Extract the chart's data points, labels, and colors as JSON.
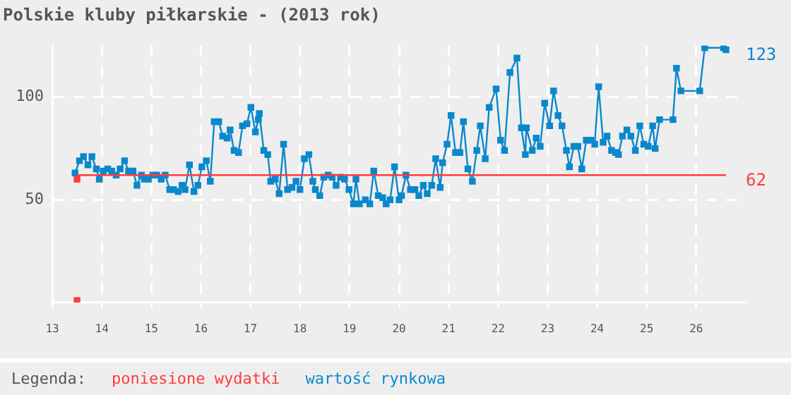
{
  "chart_data": {
    "type": "line",
    "title": "Polskie kluby piłkarskie - (2013 rok)",
    "legend_title": "Legenda:",
    "legend": "bottom",
    "grid": true,
    "marker": "square",
    "xlim": [
      13,
      27
    ],
    "xticks": [
      13,
      14,
      15,
      16,
      17,
      18,
      19,
      20,
      21,
      22,
      23,
      24,
      25,
      26
    ],
    "ylim": [
      0,
      125
    ],
    "yticks": [
      50,
      100
    ],
    "series": [
      {
        "name": "poniesione wydatki",
        "type": "scatter",
        "color": "#ff3b3b",
        "x": [
          13.5,
          13.5
        ],
        "values": [
          60,
          1
        ]
      },
      {
        "type": "line",
        "color": "#ff3b3b",
        "marker": "none",
        "x": [
          13.5,
          26.6
        ],
        "values": [
          62,
          62
        ]
      },
      {
        "name": "wartość rynkowa",
        "color": "#0a88cc",
        "x": [
          13.46,
          13.55,
          13.63,
          13.72,
          13.8,
          13.89,
          13.95,
          14.03,
          14.12,
          14.2,
          14.29,
          14.37,
          14.46,
          14.54,
          14.63,
          14.71,
          14.8,
          14.86,
          14.94,
          15.03,
          15.11,
          15.2,
          15.28,
          15.37,
          15.45,
          15.54,
          15.62,
          15.68,
          15.77,
          15.86,
          15.94,
          16.02,
          16.11,
          16.19,
          16.27,
          16.36,
          16.44,
          16.53,
          16.59,
          16.67,
          16.76,
          16.84,
          16.93,
          17.01,
          17.1,
          17.16,
          17.18,
          17.27,
          17.35,
          17.41,
          17.5,
          17.58,
          17.67,
          17.75,
          17.84,
          17.92,
          18.0,
          18.09,
          18.18,
          18.26,
          18.31,
          18.4,
          18.48,
          18.57,
          18.65,
          18.73,
          18.82,
          18.9,
          18.99,
          19.08,
          19.13,
          19.2,
          19.32,
          19.41,
          19.49,
          19.58,
          19.67,
          19.74,
          19.82,
          19.91,
          20.0,
          20.05,
          20.14,
          20.23,
          20.32,
          20.4,
          20.49,
          20.57,
          20.66,
          20.74,
          20.83,
          20.88,
          20.97,
          21.05,
          21.14,
          21.23,
          21.3,
          21.39,
          21.48,
          21.57,
          21.64,
          21.74,
          21.82,
          21.96,
          22.05,
          22.13,
          22.24,
          22.38,
          22.47,
          22.55,
          22.57,
          22.69,
          22.77,
          22.85,
          22.94,
          23.04,
          23.12,
          23.21,
          23.29,
          23.38,
          23.44,
          23.53,
          23.61,
          23.69,
          23.78,
          23.87,
          23.95,
          24.03,
          24.12,
          24.2,
          24.29,
          24.37,
          24.43,
          24.51,
          24.6,
          24.68,
          24.77,
          24.86,
          24.94,
          25.03,
          25.12,
          25.17,
          25.26,
          25.53,
          25.6,
          25.69,
          26.07,
          26.17,
          26.55,
          26.6
        ],
        "values": [
          63,
          69,
          71,
          67,
          71,
          65,
          60,
          64,
          65,
          64,
          62,
          65,
          69,
          64,
          64,
          57,
          62,
          60,
          60,
          62,
          62,
          60,
          62,
          55,
          55,
          54,
          57,
          55,
          67,
          54,
          57,
          66,
          69,
          59,
          88,
          88,
          81,
          80,
          84,
          74,
          73,
          86,
          87,
          95,
          83,
          89,
          92,
          74,
          72,
          59,
          60,
          53,
          77,
          55,
          56,
          59,
          55,
          70,
          72,
          59,
          55,
          52,
          61,
          62,
          61,
          57,
          61,
          60,
          55,
          48,
          60,
          48,
          50,
          48,
          64,
          52,
          51,
          48,
          50,
          66,
          50,
          52,
          62,
          55,
          55,
          52,
          57,
          53,
          57,
          70,
          56,
          68,
          77,
          91,
          73,
          73,
          88,
          65,
          59,
          74,
          86,
          70,
          95,
          104,
          79,
          74,
          112,
          119,
          85,
          72,
          85,
          74,
          80,
          76,
          97,
          86,
          103,
          91,
          86,
          74,
          66,
          76,
          76,
          65,
          79,
          79,
          77,
          105,
          78,
          81,
          74,
          73,
          72,
          81,
          84,
          81,
          74,
          86,
          77,
          76,
          86,
          75,
          89,
          89,
          114,
          103,
          103,
          124,
          124,
          123
        ]
      }
    ],
    "annotations": [
      {
        "text": "123",
        "x": 26.6,
        "y": 123
      },
      {
        "text": "62",
        "x": 26.6,
        "y": 62
      }
    ]
  }
}
